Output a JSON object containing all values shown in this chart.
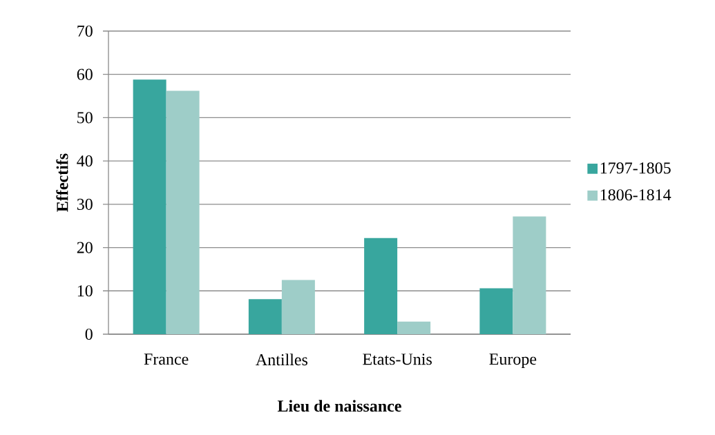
{
  "chart_data": {
    "type": "bar",
    "xlabel": "Lieu de naissance",
    "ylabel": "Effectifs",
    "categories": [
      "France",
      "Antilles",
      "Etats-Unis",
      "Europe"
    ],
    "series": [
      {
        "name": "1797-1805",
        "color": "#38a69e",
        "values": [
          58.8,
          8.1,
          22.2,
          10.6
        ]
      },
      {
        "name": "1806-1814",
        "color": "#9ecdc8",
        "values": [
          56.2,
          12.5,
          2.9,
          27.2
        ]
      }
    ],
    "ylim": [
      0,
      70
    ],
    "yticks": [
      0,
      10,
      20,
      30,
      40,
      50,
      60,
      70
    ],
    "grid": "y",
    "legend": "right"
  }
}
